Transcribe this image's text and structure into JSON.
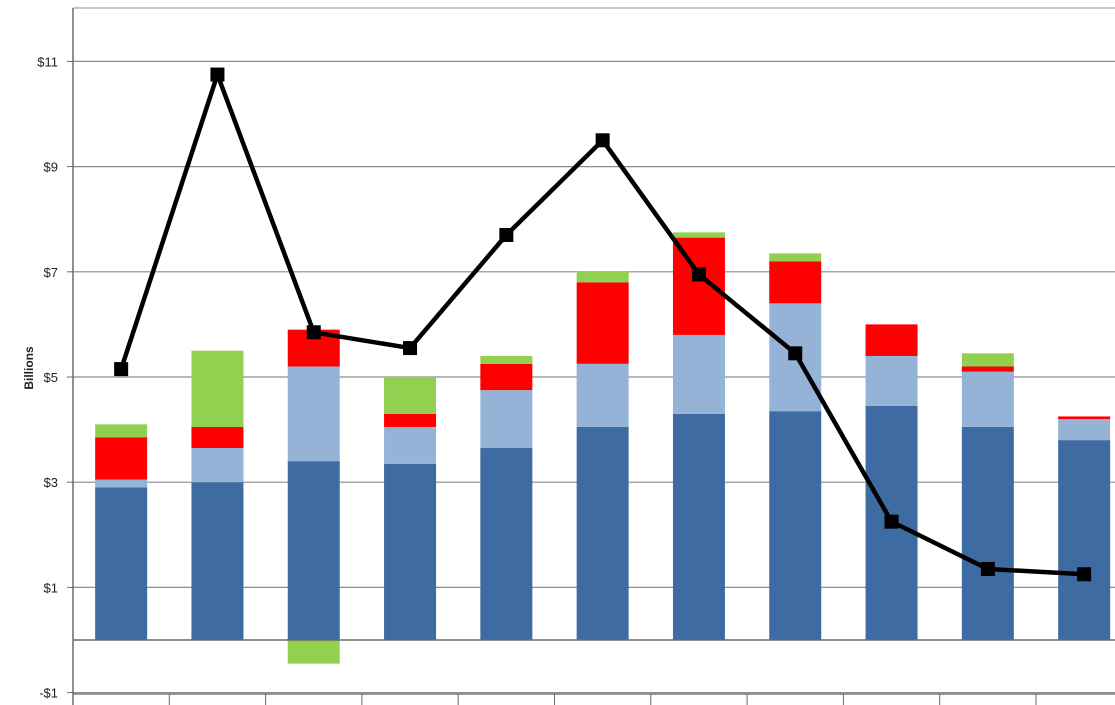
{
  "chart_data": {
    "type": "bar",
    "stacked": true,
    "title": "",
    "xlabel": "",
    "ylabel": "Billions",
    "ylim": [
      -1,
      12
    ],
    "yticks": [
      -1,
      1,
      3,
      5,
      7,
      9,
      11
    ],
    "ytick_labels": [
      "-$1",
      "$1",
      "$3",
      "$5",
      "$7",
      "$9",
      "$11"
    ],
    "grid": true,
    "categories": [
      "",
      "",
      "",
      "",
      "",
      "",
      "",
      "",
      "",
      "",
      ""
    ],
    "series": [
      {
        "color": "#3f6ba3",
        "values": [
          2.9,
          3.0,
          3.4,
          3.35,
          3.65,
          4.05,
          4.3,
          4.35,
          4.45,
          4.05,
          3.8
        ]
      },
      {
        "color": "#95b3d7",
        "values": [
          0.15,
          0.65,
          1.8,
          0.7,
          1.1,
          1.2,
          1.5,
          2.05,
          0.95,
          1.05,
          0.4
        ]
      },
      {
        "color": "#ff0000",
        "values": [
          0.8,
          0.4,
          0.7,
          0.25,
          0.5,
          1.55,
          1.85,
          0.8,
          0.6,
          0.1,
          0.05
        ]
      },
      {
        "color": "#92d050",
        "values": [
          0.25,
          1.45,
          -0.45,
          0.7,
          0.15,
          0.2,
          0.1,
          0.15,
          0,
          0.25,
          0
        ]
      }
    ],
    "line_series": {
      "color": "#000000",
      "values": [
        5.15,
        10.75,
        5.85,
        5.55,
        7.7,
        9.5,
        6.95,
        5.45,
        2.25,
        1.35,
        1.25
      ]
    }
  }
}
